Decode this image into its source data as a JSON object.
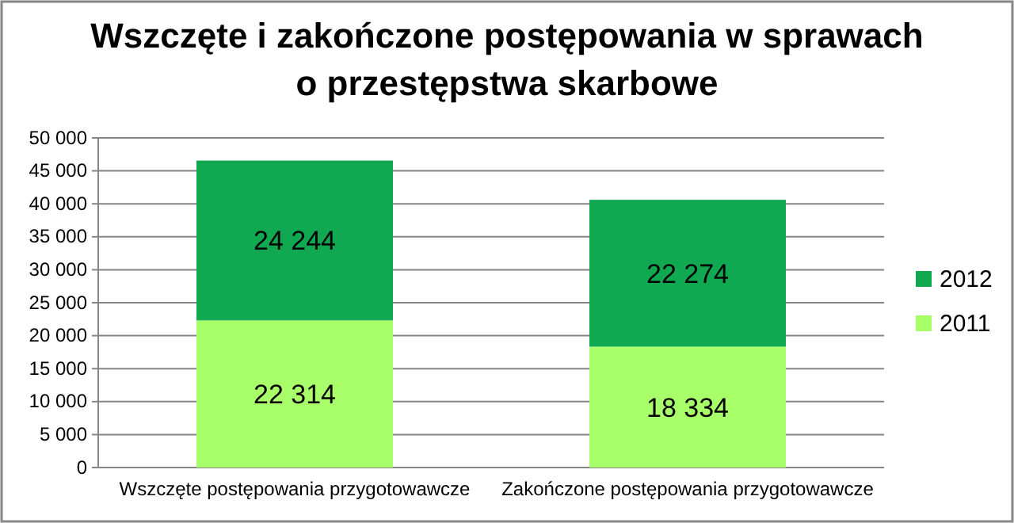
{
  "chart_data": {
    "type": "bar",
    "stacked": true,
    "title": "Wszczęte i zakończone postępowania w sprawach\no przestępstwa skarbowe",
    "categories": [
      "Wszczęte postępowania przygotowawcze",
      "Zakończone postępowania przygotowawcze"
    ],
    "series": [
      {
        "name": "2011",
        "color": "#a8ff6a",
        "values": [
          22314,
          18334
        ],
        "value_labels": [
          "22 314",
          "18 334"
        ]
      },
      {
        "name": "2012",
        "color": "#10a850",
        "values": [
          24244,
          22274
        ],
        "value_labels": [
          "24 244",
          "22 274"
        ]
      }
    ],
    "ylim": [
      0,
      50000
    ],
    "yticks": [
      0,
      {
        "value": 5000,
        "label": "5 000"
      },
      {
        "value": 10000,
        "label": "10 000"
      },
      {
        "value": 15000,
        "label": "15 000"
      },
      {
        "value": 20000,
        "label": "20 000"
      },
      {
        "value": 25000,
        "label": "25 000"
      },
      {
        "value": 30000,
        "label": "30 000"
      },
      {
        "value": 35000,
        "label": "35 000"
      },
      {
        "value": 40000,
        "label": "40 000"
      },
      {
        "value": 45000,
        "label": "45 000"
      },
      {
        "value": 50000,
        "label": "50 000"
      }
    ],
    "grid": "y",
    "legend": "right"
  }
}
